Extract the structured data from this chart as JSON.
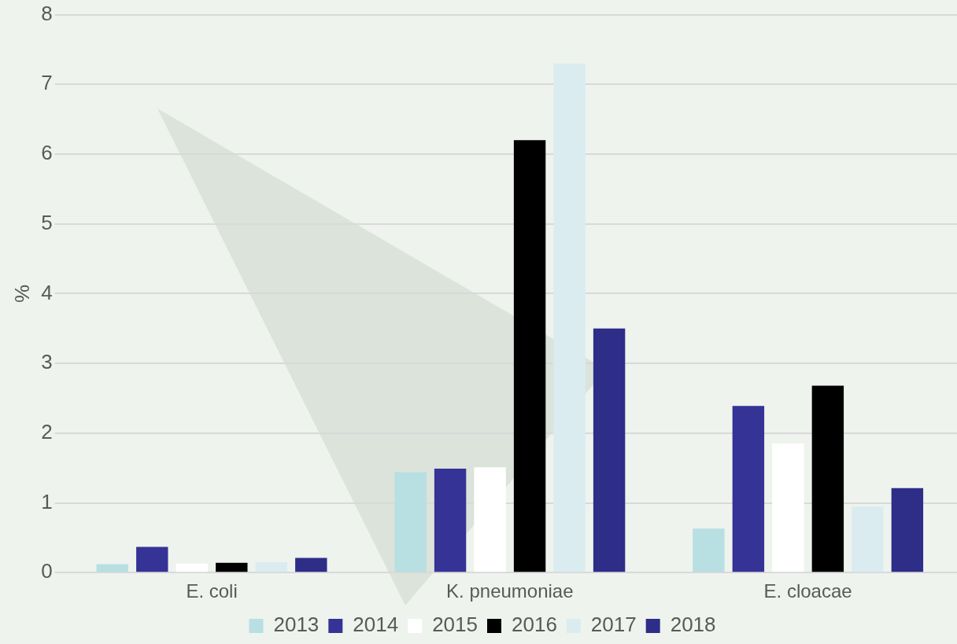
{
  "chart_data": {
    "type": "bar",
    "ylabel": "%",
    "categories": [
      "E. coli",
      "K. pneumoniae",
      "E. cloacae"
    ],
    "series": [
      {
        "name": "2013",
        "color": "#b8dfe2",
        "values": [
          0.12,
          1.44,
          0.63
        ]
      },
      {
        "name": "2014",
        "color": "#353395",
        "values": [
          0.37,
          1.49,
          2.39
        ]
      },
      {
        "name": "2015",
        "color": "#ffffff",
        "values": [
          0.13,
          1.51,
          1.85
        ]
      },
      {
        "name": "2016",
        "color": "#000000",
        "values": [
          0.14,
          6.2,
          2.68
        ]
      },
      {
        "name": "2017",
        "color": "#daecef",
        "values": [
          0.15,
          7.3,
          0.95
        ]
      },
      {
        "name": "2018",
        "color": "#2e2d88",
        "values": [
          0.21,
          3.5,
          1.21
        ]
      }
    ],
    "ylim": [
      0,
      8
    ],
    "yticks": [
      0,
      1,
      2,
      3,
      4,
      5,
      6,
      7,
      8
    ],
    "grid": "y",
    "legend": "bottom"
  }
}
